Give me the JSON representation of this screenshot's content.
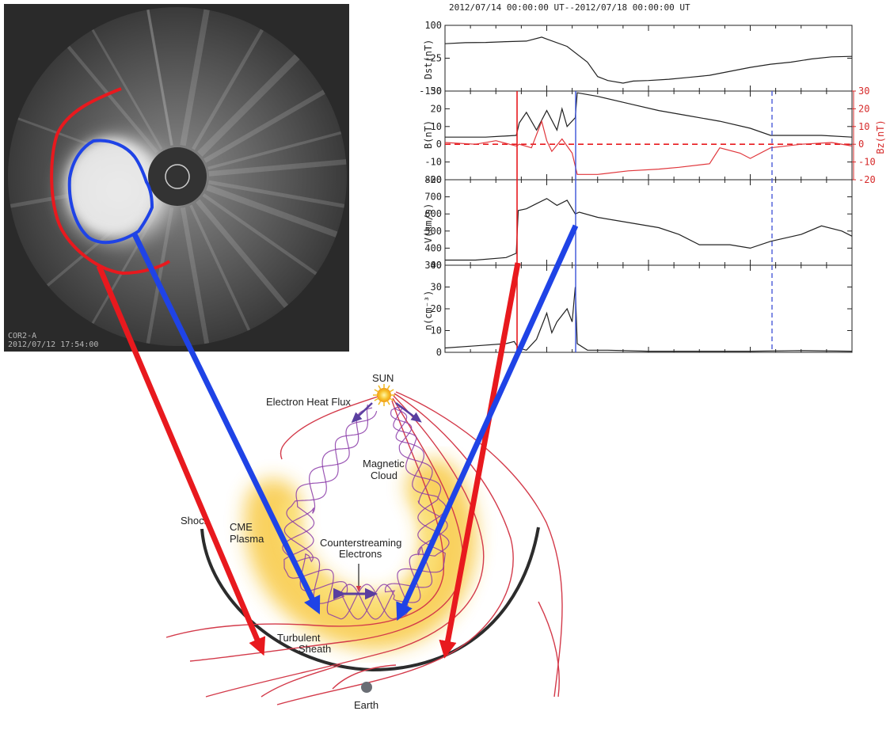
{
  "coronagraph": {
    "instrument_label": "COR2-A",
    "timestamp_label": "2012/07/12 17:54:00"
  },
  "timeseries": {
    "title": "2012/07/14 00:00:00 UT--2012/07/18 00:00:00 UT"
  },
  "diagram": {
    "sun_label": "SUN",
    "electron_heat_flux_label": "Electron Heat Flux",
    "magnetic_cloud_label_1": "Magnetic",
    "magnetic_cloud_label_2": "Cloud",
    "shock_label": "Shock",
    "cme_label_1": "CME",
    "cme_label_2": "Plasma",
    "counterstreaming_label_1": "Counterstreaming",
    "counterstreaming_label_2": "Electrons",
    "turbulent_label_1": "Turbulent",
    "turbulent_label_2": "Sheath",
    "earth_label": "Earth"
  },
  "colors": {
    "sheath_arrow": "#e8191e",
    "cloud_arrow": "#1f43e6",
    "field_line": "#d33a4a",
    "helix": "#8a3aa8",
    "cme_glow": "#f7c22b",
    "shock": "#2c2c2c"
  },
  "chart_data": [
    {
      "type": "line",
      "panel": "Dst",
      "ylabel": "Dst(nT)",
      "ylim": [
        -150,
        100
      ],
      "yticks": [
        "100",
        "-25",
        "-150"
      ],
      "x_range_days": [
        0,
        4
      ],
      "series": [
        {
          "x": [
            0,
            0.2,
            0.4,
            0.6,
            0.8,
            0.95,
            1.0,
            1.2,
            1.4,
            1.5,
            1.6,
            1.75,
            1.85,
            2.0,
            2.2,
            2.4,
            2.6,
            2.8,
            3.0,
            3.2,
            3.4,
            3.6,
            3.8,
            4.0
          ],
          "y": [
            30,
            34,
            35,
            38,
            40,
            55,
            48,
            20,
            -40,
            -95,
            -110,
            -120,
            -112,
            -110,
            -105,
            -98,
            -90,
            -75,
            -60,
            -48,
            -40,
            -28,
            -20,
            -18
          ]
        }
      ]
    },
    {
      "type": "line",
      "panel": "B",
      "ylabel": "B(nT)",
      "ylabel_right": "Bz(nT)",
      "ylim": [
        -20,
        30
      ],
      "yticks": [
        "30",
        "20",
        "10",
        "0",
        "-10",
        "-20"
      ],
      "right_ticks": [
        "30",
        "20",
        "10",
        "0",
        "-10",
        "-20"
      ],
      "x_range_days": [
        0,
        4
      ],
      "series": [
        {
          "name": "B",
          "x": [
            0,
            0.4,
            0.7,
            0.73,
            0.8,
            0.9,
            1.0,
            1.1,
            1.15,
            1.2,
            1.28,
            1.3,
            1.5,
            1.8,
            2.1,
            2.4,
            2.7,
            3.0,
            3.2,
            3.4,
            3.7,
            4.0
          ],
          "y": [
            4,
            4,
            5,
            12,
            18,
            8,
            19,
            8,
            20,
            10,
            15,
            29,
            27,
            23,
            19,
            16,
            13,
            9,
            5,
            5,
            5,
            4
          ]
        },
        {
          "name": "Bz",
          "x": [
            0,
            0.3,
            0.5,
            0.7,
            0.73,
            0.85,
            0.95,
            1.0,
            1.05,
            1.15,
            1.25,
            1.3,
            1.5,
            1.8,
            2.1,
            2.3,
            2.6,
            2.7,
            2.9,
            3.0,
            3.2,
            3.5,
            3.8,
            4.0
          ],
          "y": [
            1,
            0,
            2,
            -1,
            0,
            -2,
            13,
            2,
            -4,
            3,
            -5,
            -17,
            -17,
            -15,
            -14,
            -13,
            -11,
            -2,
            -5,
            -8,
            -2,
            0,
            1,
            -1
          ]
        }
      ]
    },
    {
      "type": "line",
      "panel": "V",
      "ylabel": "V(km/s)",
      "ylim": [
        300,
        800
      ],
      "yticks": [
        "800",
        "700",
        "600",
        "500",
        "400",
        "300"
      ],
      "x_range_days": [
        0,
        4
      ],
      "series": [
        {
          "x": [
            0,
            0.3,
            0.6,
            0.7,
            0.72,
            0.8,
            0.9,
            1.0,
            1.1,
            1.2,
            1.28,
            1.32,
            1.5,
            1.8,
            2.1,
            2.3,
            2.5,
            2.8,
            3.0,
            3.2,
            3.5,
            3.7,
            3.9,
            4.0
          ],
          "y": [
            330,
            330,
            345,
            370,
            620,
            630,
            660,
            690,
            650,
            680,
            600,
            610,
            580,
            550,
            520,
            480,
            420,
            420,
            400,
            440,
            480,
            530,
            500,
            470
          ]
        }
      ]
    },
    {
      "type": "line",
      "panel": "n",
      "ylabel": "n(cm⁻³)",
      "ylim": [
        0,
        40
      ],
      "yticks": [
        "40",
        "30",
        "20",
        "10",
        "0"
      ],
      "x_range_days": [
        0,
        4
      ],
      "series": [
        {
          "x": [
            0,
            0.3,
            0.6,
            0.68,
            0.72,
            0.8,
            0.9,
            1.0,
            1.05,
            1.1,
            1.2,
            1.25,
            1.28,
            1.3,
            1.4,
            1.6,
            2.0,
            2.5,
            3.0,
            3.5,
            4.0
          ],
          "y": [
            2,
            3,
            4,
            5,
            2,
            1,
            6,
            18,
            9,
            14,
            20,
            14,
            30,
            4,
            1,
            1,
            0.5,
            0.5,
            0.5,
            0.8,
            0.5
          ]
        }
      ]
    }
  ]
}
